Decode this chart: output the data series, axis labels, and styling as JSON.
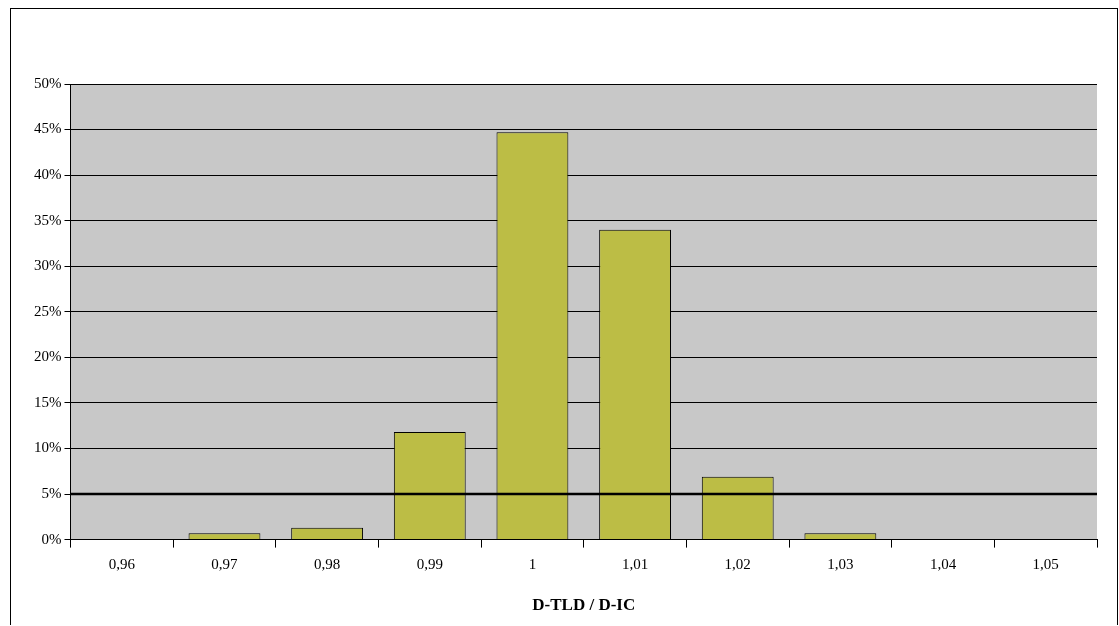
{
  "chart_data": {
    "type": "bar",
    "xlabel": "D-TLD / D-IC",
    "categories": [
      "0,96",
      "0,97",
      "0,98",
      "0,99",
      "1",
      "1,01",
      "1,02",
      "1,03",
      "1,04",
      "1,05"
    ],
    "values": [
      0,
      0.7,
      1.3,
      11.8,
      44.7,
      34.0,
      6.9,
      0.7,
      0,
      0
    ],
    "color": "#bcbd45",
    "ylim": [
      0,
      50
    ],
    "yticks": [
      {
        "value": 0,
        "label": "0%"
      },
      {
        "value": 5,
        "label": "5%"
      },
      {
        "value": 10,
        "label": "10%"
      },
      {
        "value": 15,
        "label": "15%"
      },
      {
        "value": 20,
        "label": "20%"
      },
      {
        "value": 25,
        "label": "25%"
      },
      {
        "value": 30,
        "label": "30%"
      },
      {
        "value": 35,
        "label": "35%"
      },
      {
        "value": 40,
        "label": "40%"
      },
      {
        "value": 45,
        "label": "45%"
      },
      {
        "value": 50,
        "label": "50%"
      }
    ],
    "ref_lines": [
      {
        "axis": "y",
        "value": 5,
        "color": "#000000"
      }
    ],
    "grid": "y",
    "legend": false
  }
}
